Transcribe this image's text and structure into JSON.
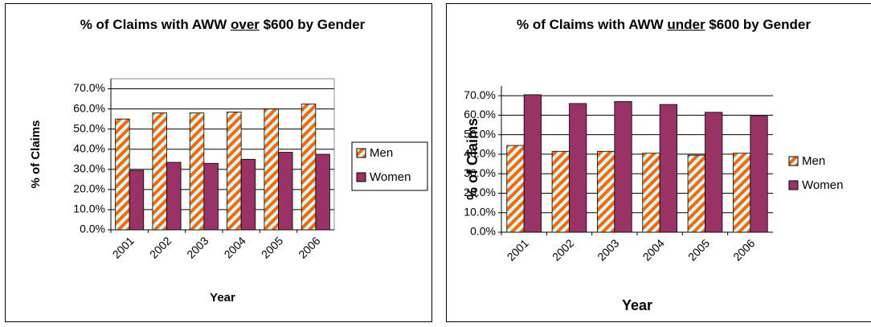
{
  "chart_data": [
    {
      "type": "bar",
      "title": [
        "% of Claims with AWW",
        "over",
        "$600 by Gender"
      ],
      "title_underline": 1,
      "x_label": "Year",
      "y_label": "% of Claims",
      "categories": [
        "2001",
        "2002",
        "2003",
        "2004",
        "2005",
        "2006"
      ],
      "series": [
        {
          "name": "Men",
          "color": "#ccffff",
          "hatch": "#ff6600",
          "values": [
            55,
            58,
            58,
            58.5,
            60,
            62.5
          ]
        },
        {
          "name": "Women",
          "color": "#993366",
          "values": [
            29.5,
            33.5,
            33,
            35,
            38.5,
            37.5
          ]
        }
      ],
      "ylim": [
        0,
        75
      ],
      "yticks": [
        {
          "value": 0,
          "label": "0.0%"
        },
        {
          "value": 10,
          "label": "10.0%"
        },
        {
          "value": 20,
          "label": "20.0%"
        },
        {
          "value": 30,
          "label": "30.0%"
        },
        {
          "value": 40,
          "label": "40.0%"
        },
        {
          "value": 50,
          "label": "50.0%"
        },
        {
          "value": 60,
          "label": "60.0%"
        },
        {
          "value": 70,
          "label": "70.0%"
        }
      ],
      "grid": true,
      "legend": "right"
    },
    {
      "type": "bar",
      "title": [
        "% of Claims with AWW",
        "under",
        "$600 by Gender"
      ],
      "title_underline": 1,
      "x_label": "Year",
      "y_label": "% of Claims",
      "categories": [
        "2001",
        "2002",
        "2003",
        "2004",
        "2005",
        "2006"
      ],
      "series": [
        {
          "name": "Men",
          "color": "#ccffff",
          "hatch": "#ff6600",
          "values": [
            44.5,
            41.5,
            41.5,
            40.5,
            39.5,
            40.5
          ]
        },
        {
          "name": "Women",
          "color": "#993366",
          "values": [
            70.5,
            66,
            67,
            65.5,
            61.5,
            59.5
          ]
        }
      ],
      "ylim": [
        0,
        75
      ],
      "yticks": [
        {
          "value": 0,
          "label": "0.0%"
        },
        {
          "value": 10,
          "label": "10.0%"
        },
        {
          "value": 20,
          "label": "20.0%"
        },
        {
          "value": 30,
          "label": "30.0%"
        },
        {
          "value": 40,
          "label": "40.0%"
        },
        {
          "value": 50,
          "label": "50.0%"
        },
        {
          "value": 60,
          "label": "60.0%"
        },
        {
          "value": 70,
          "label": "70.0%"
        }
      ],
      "grid": true,
      "legend": "right"
    }
  ]
}
